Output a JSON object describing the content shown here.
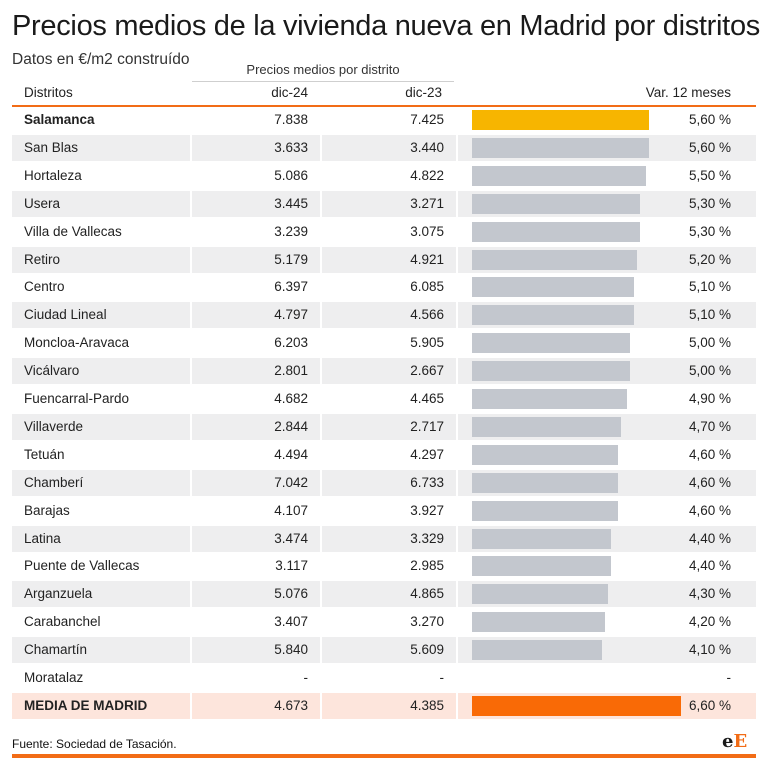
{
  "title": "Precios medios de la vivienda nueva en Madrid por distritos",
  "subtitle": "Datos en €/m2 construído",
  "group_header": "Precios medios por distrito",
  "columns": {
    "name": "Distritos",
    "c24": "dic-24",
    "c23": "dic-23",
    "var": "Var. 12 meses"
  },
  "source": "Fuente: Sociedad de Tasación.",
  "logo": {
    "small": "e",
    "big": "E"
  },
  "colors": {
    "accent": "#f26c16",
    "highlight": "#f7b500",
    "total": "#f96a06",
    "bar": "#c3c7ce"
  },
  "chart_data": {
    "type": "table",
    "bar_max": 6.6,
    "rows": [
      {
        "name": "Salamanca",
        "dic24": "7.838",
        "dic23": "7.425",
        "var": 5.6,
        "var_label": "5,60 %",
        "highlight": true
      },
      {
        "name": "San Blas",
        "dic24": "3.633",
        "dic23": "3.440",
        "var": 5.6,
        "var_label": "5,60 %"
      },
      {
        "name": "Hortaleza",
        "dic24": "5.086",
        "dic23": "4.822",
        "var": 5.5,
        "var_label": "5,50 %"
      },
      {
        "name": "Usera",
        "dic24": "3.445",
        "dic23": "3.271",
        "var": 5.3,
        "var_label": "5,30 %"
      },
      {
        "name": "Villa de Vallecas",
        "dic24": "3.239",
        "dic23": "3.075",
        "var": 5.3,
        "var_label": "5,30 %"
      },
      {
        "name": "Retiro",
        "dic24": "5.179",
        "dic23": "4.921",
        "var": 5.2,
        "var_label": "5,20 %"
      },
      {
        "name": "Centro",
        "dic24": "6.397",
        "dic23": "6.085",
        "var": 5.1,
        "var_label": "5,10 %"
      },
      {
        "name": "Ciudad Lineal",
        "dic24": "4.797",
        "dic23": "4.566",
        "var": 5.1,
        "var_label": "5,10 %"
      },
      {
        "name": "Moncloa-Aravaca",
        "dic24": "6.203",
        "dic23": "5.905",
        "var": 5.0,
        "var_label": "5,00 %"
      },
      {
        "name": "Vicálvaro",
        "dic24": "2.801",
        "dic23": "2.667",
        "var": 5.0,
        "var_label": "5,00 %"
      },
      {
        "name": "Fuencarral-Pardo",
        "dic24": "4.682",
        "dic23": "4.465",
        "var": 4.9,
        "var_label": "4,90 %"
      },
      {
        "name": "Villaverde",
        "dic24": "2.844",
        "dic23": "2.717",
        "var": 4.7,
        "var_label": "4,70 %"
      },
      {
        "name": "Tetuán",
        "dic24": "4.494",
        "dic23": "4.297",
        "var": 4.6,
        "var_label": "4,60 %"
      },
      {
        "name": "Chamberí",
        "dic24": "7.042",
        "dic23": "6.733",
        "var": 4.6,
        "var_label": "4,60 %"
      },
      {
        "name": "Barajas",
        "dic24": "4.107",
        "dic23": "3.927",
        "var": 4.6,
        "var_label": "4,60 %"
      },
      {
        "name": "Latina",
        "dic24": "3.474",
        "dic23": "3.329",
        "var": 4.4,
        "var_label": "4,40 %"
      },
      {
        "name": "Puente de Vallecas",
        "dic24": "3.117",
        "dic23": "2.985",
        "var": 4.4,
        "var_label": "4,40 %"
      },
      {
        "name": "Arganzuela",
        "dic24": "5.076",
        "dic23": "4.865",
        "var": 4.3,
        "var_label": "4,30 %"
      },
      {
        "name": "Carabanchel",
        "dic24": "3.407",
        "dic23": "3.270",
        "var": 4.2,
        "var_label": "4,20 %"
      },
      {
        "name": "Chamartín",
        "dic24": "5.840",
        "dic23": "5.609",
        "var": 4.1,
        "var_label": "4,10 %"
      },
      {
        "name": "Moratalaz",
        "dic24": "-",
        "dic23": "-",
        "var": null,
        "var_label": "-"
      },
      {
        "name": "MEDIA DE MADRID",
        "dic24": "4.673",
        "dic23": "4.385",
        "var": 6.6,
        "var_label": "6,60 %",
        "total": true
      }
    ]
  }
}
